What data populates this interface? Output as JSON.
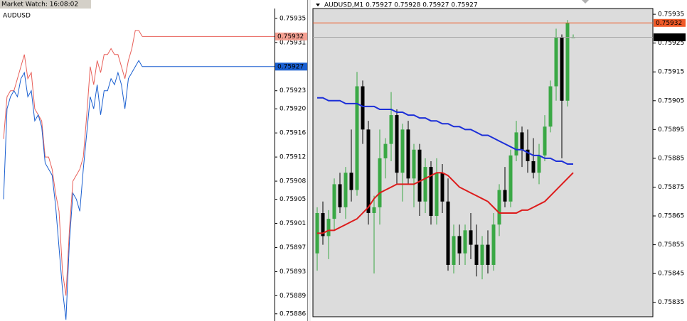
{
  "window": {
    "title": "Market Watch: 16:08:02"
  },
  "chart_data": [
    {
      "type": "line",
      "title": "AUDUSD",
      "ylim": [
        0.758848,
        0.759364
      ],
      "yticks": [
        0.75935,
        0.75931,
        0.75927,
        0.75923,
        {
          "value": 0.7592,
          "label": "0.75920"
        },
        0.75916,
        0.75912,
        0.75908,
        0.75905,
        0.75901,
        0.75897,
        0.75893,
        0.75889,
        0.75886
      ],
      "series": [
        {
          "color": "#e8605a",
          "values": [
            0.75915,
            0.75922,
            0.75923,
            0.75923,
            0.75925,
            0.75927,
            0.75929,
            0.75925,
            0.75926,
            0.7592,
            0.75919,
            0.75918,
            0.75912,
            0.75912,
            0.7591,
            0.75906,
            0.75903,
            0.75893,
            0.75889,
            0.759,
            0.75908,
            0.75909,
            0.7591,
            0.75912,
            0.75919,
            0.75927,
            0.75924,
            0.75928,
            0.75926,
            0.75929,
            0.75929,
            0.7593,
            0.75929,
            0.75929,
            0.75927,
            0.75925,
            0.75928,
            0.7593,
            0.75933,
            0.75933,
            0.75932
          ]
        },
        {
          "color": "#1a5fd0",
          "values": [
            0.75905,
            0.7592,
            0.75922,
            0.75923,
            0.75922,
            0.75925,
            0.75926,
            0.75922,
            0.75923,
            0.75918,
            0.75919,
            0.75917,
            0.75911,
            0.7591,
            0.75909,
            0.75904,
            0.75897,
            0.7589,
            0.75885,
            0.75898,
            0.75906,
            0.75905,
            0.75903,
            0.7591,
            0.75916,
            0.75922,
            0.7592,
            0.75924,
            0.75919,
            0.75923,
            0.75923,
            0.75925,
            0.75924,
            0.75926,
            0.75924,
            0.7592,
            0.75925,
            0.75926,
            0.75927,
            0.75928,
            0.75927
          ]
        }
      ],
      "price_lines": [
        {
          "value": 0.75932,
          "color": "#e8605a",
          "tag_color": "#f4a092",
          "text_color": "#000000"
        },
        {
          "value": 0.75927,
          "color": "#1a5fd0",
          "tag_color": "#1a5fd0",
          "text_color": "#ffffff"
        }
      ]
    },
    {
      "type": "candlestick",
      "title": "AUDUSD,M1 0.75927 0.75928 0.75927 0.75927",
      "ylim": [
        0.7583,
        0.75937
      ],
      "yticks": [
        0.75935,
        0.75925,
        0.75915,
        0.75905,
        0.75895,
        0.75885,
        0.75875,
        0.75865,
        0.75855,
        0.75845,
        0.75835
      ],
      "up_color": "#3aa845",
      "down_color": "#000000",
      "open": [
        0.75852,
        0.75866,
        0.75858,
        0.75864,
        0.75876,
        0.75868,
        0.7588,
        0.75874,
        0.7591,
        0.75895,
        0.75866,
        0.75868,
        0.75885,
        0.7589,
        0.759,
        0.7588,
        0.75895,
        0.75878,
        0.75888,
        0.7587,
        0.75882,
        0.75865,
        0.7588,
        0.7587,
        0.75848,
        0.75858,
        0.75852,
        0.7586,
        0.75855,
        0.75848,
        0.75855,
        0.75848,
        0.75862,
        0.75874,
        0.7587,
        0.75886,
        0.75894,
        0.75888,
        0.75884,
        0.7588,
        0.75886,
        0.75896,
        0.7591,
        0.75927,
        0.75905,
        0.75927
      ],
      "high": [
        0.75868,
        0.7587,
        0.75867,
        0.75878,
        0.7588,
        0.75882,
        0.75895,
        0.75915,
        0.75912,
        0.75898,
        0.75872,
        0.75895,
        0.75892,
        0.75908,
        0.75902,
        0.75897,
        0.75898,
        0.7589,
        0.7589,
        0.75885,
        0.75884,
        0.75885,
        0.75883,
        0.75878,
        0.75862,
        0.75862,
        0.75862,
        0.75866,
        0.75862,
        0.75858,
        0.7586,
        0.75866,
        0.75876,
        0.75882,
        0.75888,
        0.75898,
        0.75896,
        0.75895,
        0.75892,
        0.7589,
        0.759,
        0.75912,
        0.7593,
        0.75928,
        0.75933,
        0.75928
      ],
      "low": [
        0.75846,
        0.75855,
        0.7585,
        0.7586,
        0.75866,
        0.75864,
        0.7587,
        0.75872,
        0.7589,
        0.75862,
        0.75845,
        0.75862,
        0.75878,
        0.75884,
        0.75876,
        0.7587,
        0.75876,
        0.75868,
        0.75865,
        0.75866,
        0.75862,
        0.75862,
        0.75866,
        0.75846,
        0.75845,
        0.75848,
        0.75848,
        0.7585,
        0.75844,
        0.75843,
        0.75845,
        0.75846,
        0.75858,
        0.75868,
        0.75868,
        0.75884,
        0.75882,
        0.7588,
        0.75878,
        0.75876,
        0.75884,
        0.75894,
        0.75905,
        0.75885,
        0.75903,
        0.75927
      ],
      "close": [
        0.75866,
        0.75858,
        0.75864,
        0.75876,
        0.75868,
        0.7588,
        0.75874,
        0.7591,
        0.75895,
        0.75866,
        0.75868,
        0.75885,
        0.7589,
        0.759,
        0.7588,
        0.75895,
        0.75878,
        0.75888,
        0.7587,
        0.75882,
        0.75865,
        0.7588,
        0.7587,
        0.75848,
        0.75858,
        0.75852,
        0.7586,
        0.75855,
        0.75848,
        0.75855,
        0.75848,
        0.75862,
        0.75874,
        0.7587,
        0.75886,
        0.75894,
        0.75888,
        0.75884,
        0.7588,
        0.75886,
        0.75896,
        0.7591,
        0.75927,
        0.75905,
        0.75932,
        0.75927
      ],
      "series": [
        {
          "color": "#1c2fd8",
          "values": [
            0.75906,
            0.75906,
            0.75905,
            0.75905,
            0.75905,
            0.75904,
            0.75904,
            0.75904,
            0.75903,
            0.75903,
            0.75903,
            0.75902,
            0.75902,
            0.75902,
            0.75901,
            0.75901,
            0.759,
            0.759,
            0.75899,
            0.75899,
            0.75898,
            0.75898,
            0.75897,
            0.75897,
            0.75896,
            0.75896,
            0.75895,
            0.75895,
            0.75894,
            0.75893,
            0.75893,
            0.75892,
            0.75891,
            0.7589,
            0.75889,
            0.75888,
            0.75888,
            0.75887,
            0.75886,
            0.75886,
            0.75885,
            0.75885,
            0.75884,
            0.75884,
            0.75883,
            0.75883
          ]
        },
        {
          "color": "#dd1c1c",
          "values": [
            0.75859,
            0.75859,
            0.7586,
            0.7586,
            0.75861,
            0.75862,
            0.75863,
            0.75864,
            0.75866,
            0.75868,
            0.75871,
            0.75873,
            0.75874,
            0.75875,
            0.75876,
            0.75876,
            0.75876,
            0.75876,
            0.75877,
            0.75878,
            0.75879,
            0.7588,
            0.7588,
            0.75879,
            0.75877,
            0.75875,
            0.75874,
            0.75873,
            0.75872,
            0.75871,
            0.7587,
            0.75868,
            0.75866,
            0.75866,
            0.75866,
            0.75866,
            0.75867,
            0.75867,
            0.75868,
            0.75869,
            0.7587,
            0.75872,
            0.75874,
            0.75876,
            0.75878,
            0.7588
          ]
        }
      ],
      "price_lines": [
        {
          "value": 0.75932,
          "color": "#f05a28",
          "tag_color": "#f05a28",
          "text_color": "#ffffff"
        },
        {
          "value": 0.75927,
          "color": "#a8a8a8",
          "tag_color": "#000000",
          "text_color": "#ffffff"
        }
      ]
    }
  ]
}
